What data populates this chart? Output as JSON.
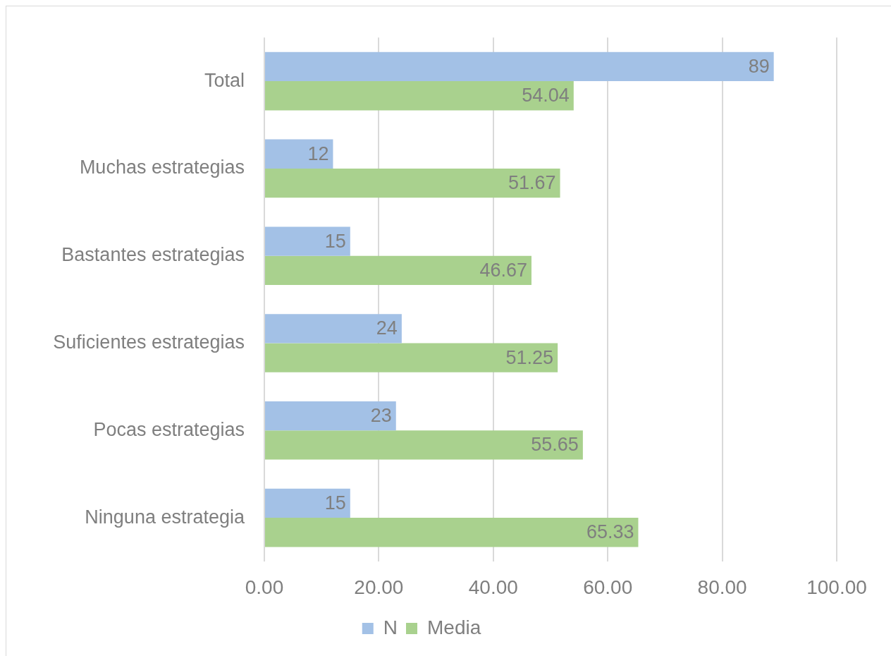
{
  "chart_data": {
    "type": "bar",
    "orientation": "horizontal",
    "categories": [
      "Total",
      "Muchas estrategias",
      "Bastantes estrategias",
      "Suficientes estrategias",
      "Pocas estrategias",
      "Ninguna estrategia"
    ],
    "series": [
      {
        "name": "N",
        "color": "#a3c1e6",
        "values": [
          89,
          12,
          15,
          24,
          23,
          15
        ]
      },
      {
        "name": "Media",
        "color": "#a9d18e",
        "values": [
          54.04,
          51.67,
          46.67,
          51.25,
          55.65,
          65.33
        ]
      }
    ],
    "xlim": [
      0,
      100
    ],
    "xticks": [
      {
        "value": 0,
        "label": "0.00"
      },
      {
        "value": 20,
        "label": "20.00"
      },
      {
        "value": 40,
        "label": "40.00"
      },
      {
        "value": 60,
        "label": "60.00"
      },
      {
        "value": 80,
        "label": "80.00"
      },
      {
        "value": 100,
        "label": "100.00"
      }
    ],
    "grid": "x",
    "legend": "bottom",
    "data_labels": true
  }
}
